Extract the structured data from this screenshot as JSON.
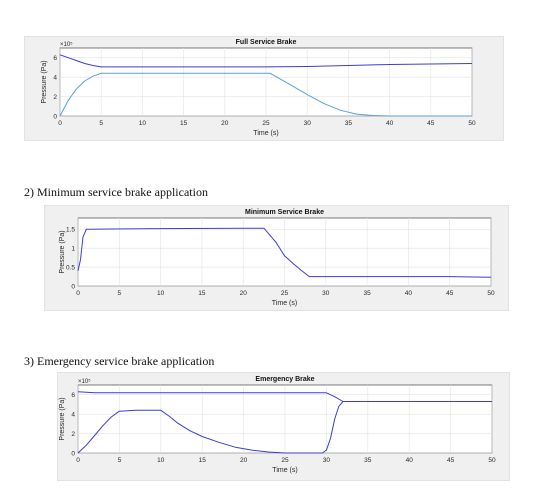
{
  "headings": {
    "h2": "2)  Minimum service brake application",
    "h3": "3)  Emergency service brake application"
  },
  "colors": {
    "dark_line": "#3d3dd6",
    "light_line": "#5aa0e0",
    "panel_bg": "#f0f0f0",
    "grid": "#e3e3e3"
  },
  "chart_data": [
    {
      "type": "line",
      "title": "Full Service Brake",
      "xlabel": "Time (s)",
      "ylabel": "Pressure (Pa)",
      "exponent_label": "×10⁵",
      "xlim": [
        0,
        50
      ],
      "ylim": [
        0,
        7
      ],
      "xticks": [
        0,
        5,
        10,
        15,
        20,
        25,
        30,
        35,
        40,
        45,
        50
      ],
      "yticks": [
        0,
        2,
        4,
        6
      ],
      "grid": true,
      "series": [
        {
          "color": "#3d3dd6",
          "x": [
            0,
            1,
            2,
            3,
            4,
            5,
            10,
            20,
            25,
            30,
            35,
            40,
            45,
            50
          ],
          "y": [
            6.3,
            6.0,
            5.7,
            5.4,
            5.2,
            5.05,
            5.05,
            5.05,
            5.05,
            5.1,
            5.2,
            5.3,
            5.35,
            5.4
          ]
        },
        {
          "color": "#5aa0e0",
          "x": [
            0,
            1,
            2,
            3,
            4,
            5,
            10,
            15,
            20,
            25.5,
            28,
            30,
            32,
            34,
            36,
            38,
            40,
            45,
            50
          ],
          "y": [
            0,
            1.6,
            2.8,
            3.6,
            4.1,
            4.4,
            4.4,
            4.4,
            4.4,
            4.4,
            3.2,
            2.2,
            1.3,
            0.6,
            0.2,
            0.05,
            0,
            0,
            0
          ]
        }
      ]
    },
    {
      "type": "line",
      "title": "Minimum Service Brake",
      "xlabel": "Time (s)",
      "ylabel": "Pressure (Pa)",
      "exponent_label": "",
      "xlim": [
        0,
        50
      ],
      "ylim": [
        0,
        1.8
      ],
      "xticks": [
        0,
        5,
        10,
        15,
        20,
        25,
        30,
        35,
        40,
        45,
        50
      ],
      "yticks": [
        0,
        0.5,
        1,
        1.5
      ],
      "grid": true,
      "series": [
        {
          "color": "#3d3dd6",
          "x": [
            0,
            0.3,
            0.6,
            1,
            10,
            20,
            22.5,
            24,
            25,
            26,
            27,
            28,
            30,
            35,
            40,
            45,
            50
          ],
          "y": [
            0.4,
            0.7,
            1.3,
            1.5,
            1.52,
            1.53,
            1.53,
            1.15,
            0.8,
            0.6,
            0.42,
            0.25,
            0.25,
            0.25,
            0.25,
            0.25,
            0.23
          ]
        }
      ]
    },
    {
      "type": "line",
      "title": "Emergency Brake",
      "xlabel": "Time (s)",
      "ylabel": "Pressure (Pa)",
      "exponent_label": "×10⁵",
      "xlim": [
        0,
        50
      ],
      "ylim": [
        0,
        7
      ],
      "xticks": [
        0,
        5,
        10,
        15,
        20,
        25,
        30,
        35,
        40,
        45,
        50
      ],
      "yticks": [
        0,
        2,
        4,
        6
      ],
      "grid": true,
      "series": [
        {
          "color": "#3d3dd6",
          "x": [
            0,
            2,
            5,
            10,
            20,
            30,
            31,
            32,
            33,
            35,
            40,
            45,
            50
          ],
          "y": [
            6.3,
            6.2,
            6.2,
            6.2,
            6.2,
            6.2,
            5.8,
            5.3,
            5.3,
            5.3,
            5.3,
            5.3,
            5.3
          ]
        },
        {
          "color": "#3d3dd6",
          "x": [
            0,
            1,
            2,
            3,
            4,
            5,
            7,
            10,
            11,
            12,
            13.5,
            15,
            17,
            19,
            21,
            23,
            25,
            27,
            29.5,
            30,
            30.5,
            31,
            31.5,
            32
          ],
          "y": [
            0,
            0.8,
            1.8,
            2.8,
            3.7,
            4.3,
            4.4,
            4.4,
            3.8,
            3.1,
            2.3,
            1.7,
            1.1,
            0.6,
            0.3,
            0.1,
            0,
            0,
            0,
            0.3,
            1.5,
            3.5,
            4.8,
            5.3
          ]
        }
      ]
    }
  ]
}
